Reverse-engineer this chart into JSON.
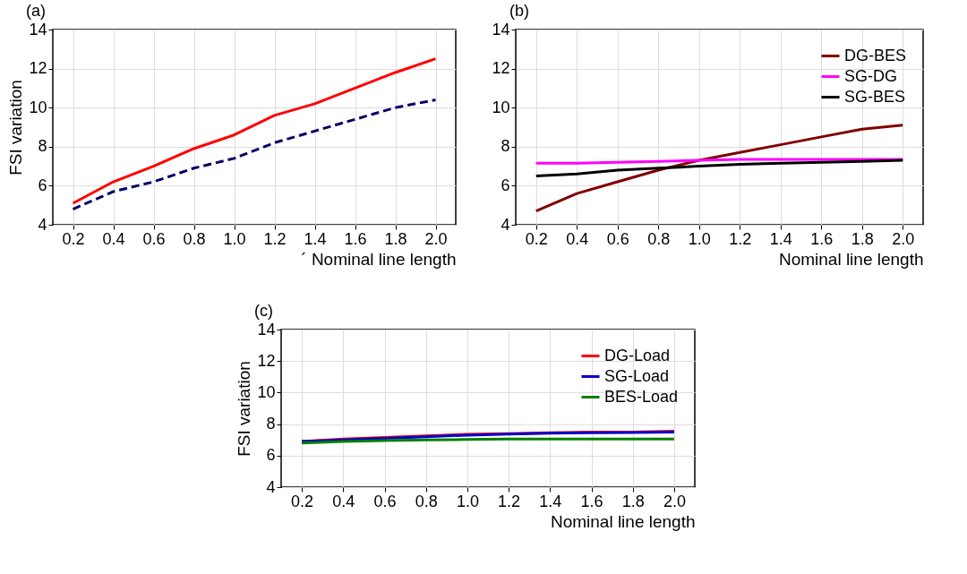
{
  "chart_data": [
    {
      "type": "line",
      "title": "(a)",
      "xlabel": "´ Nominal line length",
      "ylabel": "FSI variation",
      "categories": [
        "0.2",
        "0.4",
        "0.6",
        "0.8",
        "1.0",
        "1.2",
        "1.4",
        "1.6",
        "1.8",
        "2.0"
      ],
      "ylim": [
        4,
        14
      ],
      "yticks": [
        4,
        6,
        8,
        10,
        12,
        14
      ],
      "grid": true,
      "legend": false,
      "series": [
        {
          "color": "#ff0000",
          "line_style": "solid",
          "values": [
            5.1,
            6.2,
            7.0,
            7.9,
            8.6,
            9.6,
            10.2,
            11.0,
            11.8,
            12.5
          ]
        },
        {
          "color": "#000066",
          "line_style": "dashed",
          "values": [
            4.8,
            5.7,
            6.2,
            6.9,
            7.4,
            8.2,
            8.8,
            9.4,
            10.0,
            10.4
          ]
        }
      ]
    },
    {
      "type": "line",
      "title": "(b)",
      "xlabel": "Nominal line length",
      "categories": [
        "0.2",
        "0.4",
        "0.6",
        "0.8",
        "1.0",
        "1.2",
        "1.4",
        "1.6",
        "1.8",
        "2.0"
      ],
      "ylim": [
        4,
        14
      ],
      "yticks": [
        4,
        6,
        8,
        10,
        12,
        14
      ],
      "grid": true,
      "legend": "top right",
      "series": [
        {
          "name": "DG-BES",
          "color": "#800000",
          "values": [
            4.7,
            5.6,
            6.2,
            6.8,
            7.3,
            7.7,
            8.1,
            8.5,
            8.9,
            9.1
          ]
        },
        {
          "name": "SG-DG",
          "color": "#ff00ff",
          "values": [
            7.15,
            7.15,
            7.2,
            7.25,
            7.3,
            7.35,
            7.35,
            7.35,
            7.35,
            7.35
          ]
        },
        {
          "name": "SG-BES",
          "color": "#000000",
          "values": [
            6.5,
            6.6,
            6.8,
            6.9,
            7.0,
            7.1,
            7.15,
            7.2,
            7.25,
            7.3
          ]
        }
      ]
    },
    {
      "type": "line",
      "title": "(c)",
      "xlabel": "Nominal line length",
      "ylabel": "FSI variation",
      "categories": [
        "0.2",
        "0.4",
        "0.6",
        "0.8",
        "1.0",
        "1.2",
        "1.4",
        "1.6",
        "1.8",
        "2.0"
      ],
      "ylim": [
        4,
        14
      ],
      "yticks": [
        4,
        6,
        8,
        10,
        12,
        14
      ],
      "grid": true,
      "legend": "top right",
      "series": [
        {
          "name": "DG-Load",
          "color": "#ff0000",
          "values": [
            6.9,
            7.05,
            7.15,
            7.25,
            7.35,
            7.4,
            7.45,
            7.5,
            7.5,
            7.55
          ]
        },
        {
          "name": "SG-Load",
          "color": "#0000cc",
          "values": [
            6.9,
            7.0,
            7.1,
            7.2,
            7.3,
            7.37,
            7.42,
            7.45,
            7.47,
            7.5
          ]
        },
        {
          "name": "BES-Load",
          "color": "#008000",
          "values": [
            6.8,
            6.9,
            6.95,
            7.0,
            7.02,
            7.05,
            7.05,
            7.05,
            7.05,
            7.05
          ]
        }
      ]
    }
  ]
}
